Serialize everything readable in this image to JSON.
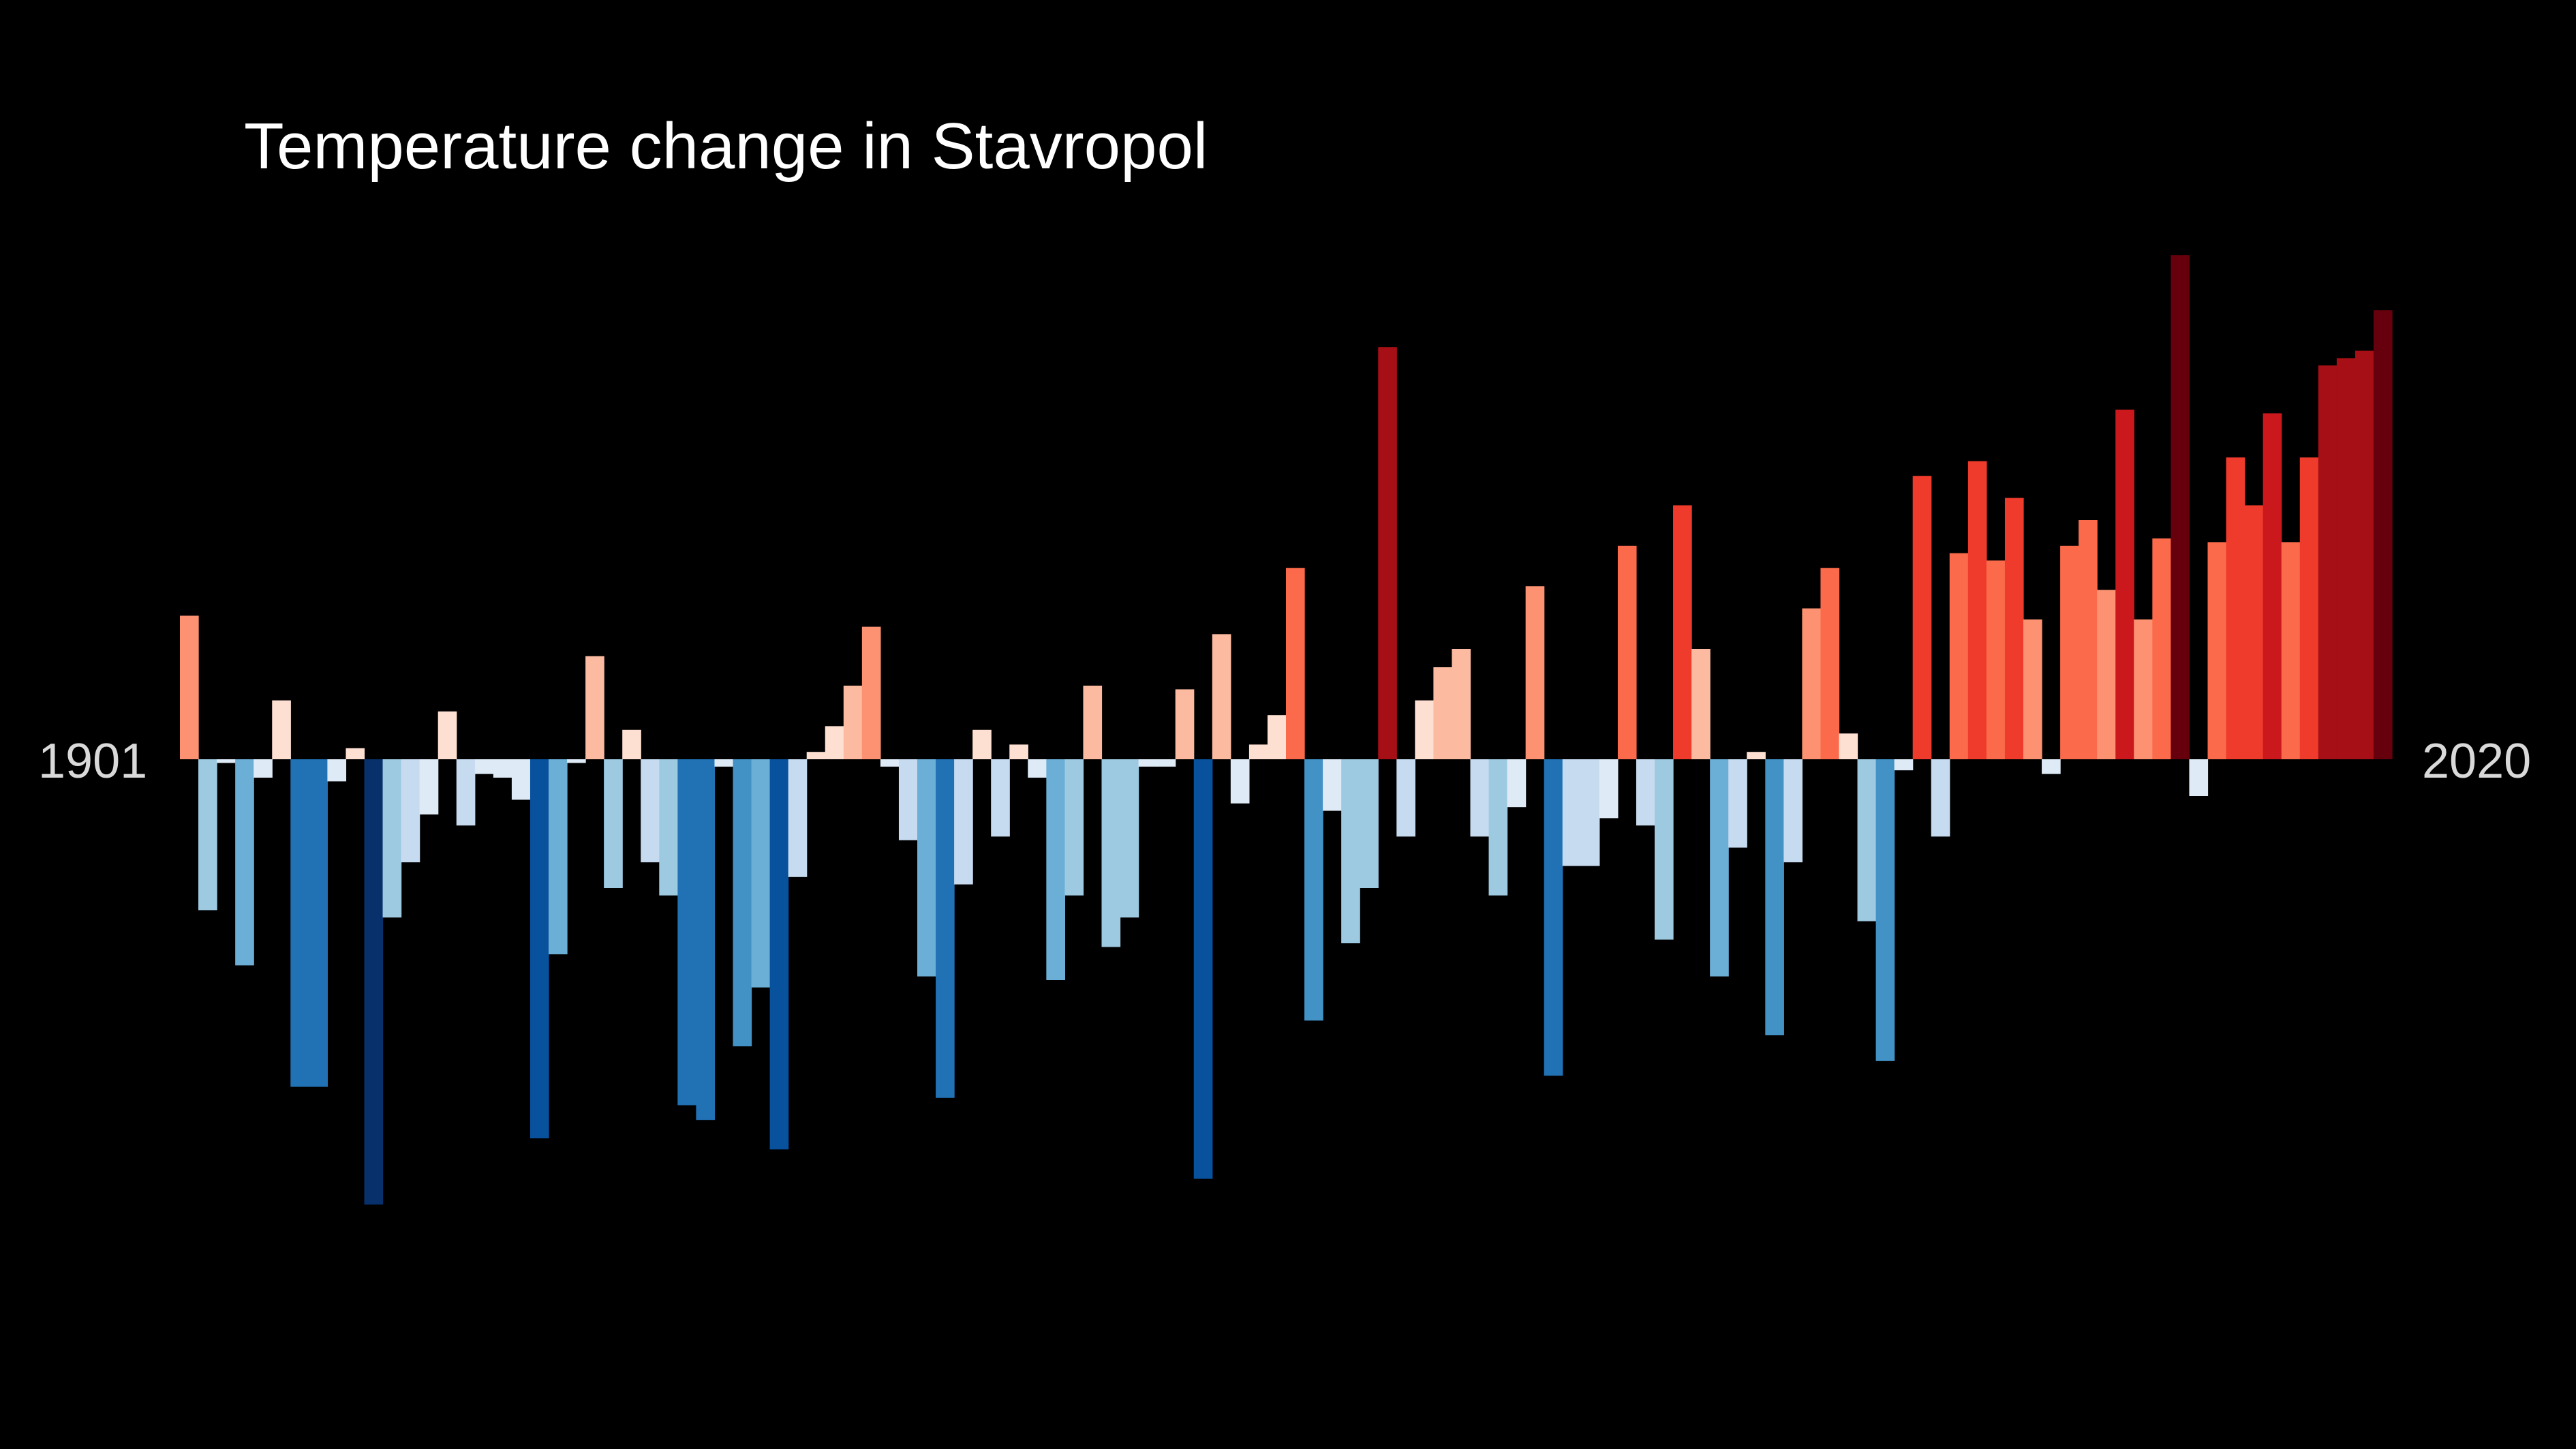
{
  "chart_data": {
    "type": "bar",
    "title": "Temperature change in Stavropol",
    "xlabel": "",
    "ylabel": "",
    "start_label": "1901",
    "end_label": "2020",
    "categories": [
      1901,
      1902,
      1903,
      1904,
      1905,
      1906,
      1907,
      1908,
      1909,
      1910,
      1911,
      1912,
      1913,
      1914,
      1915,
      1916,
      1917,
      1918,
      1919,
      1920,
      1921,
      1922,
      1923,
      1924,
      1925,
      1926,
      1927,
      1928,
      1929,
      1930,
      1931,
      1932,
      1933,
      1934,
      1935,
      1936,
      1937,
      1938,
      1939,
      1940,
      1941,
      1942,
      1943,
      1944,
      1945,
      1946,
      1947,
      1948,
      1949,
      1950,
      1951,
      1952,
      1953,
      1954,
      1955,
      1956,
      1957,
      1958,
      1959,
      1960,
      1961,
      1962,
      1963,
      1964,
      1965,
      1966,
      1967,
      1968,
      1969,
      1970,
      1971,
      1972,
      1973,
      1974,
      1975,
      1976,
      1977,
      1978,
      1979,
      1980,
      1981,
      1982,
      1983,
      1984,
      1985,
      1986,
      1987,
      1988,
      1989,
      1990,
      1991,
      1992,
      1993,
      1994,
      1995,
      1996,
      1997,
      1998,
      1999,
      2000,
      2001,
      2002,
      2003,
      2004,
      2005,
      2006,
      2007,
      2008,
      2009,
      2010,
      2011,
      2012,
      2013,
      2014,
      2015,
      2016,
      2017,
      2018,
      2019,
      2020
    ],
    "values": [
      0.39,
      -0.41,
      -0.01,
      -0.56,
      -0.05,
      0.16,
      -0.89,
      -0.89,
      -0.06,
      0.03,
      -1.21,
      -0.43,
      -0.28,
      -0.15,
      0.13,
      -0.18,
      -0.04,
      -0.05,
      -0.11,
      -1.03,
      -0.53,
      -0.01,
      0.28,
      -0.35,
      0.08,
      -0.28,
      -0.37,
      -0.94,
      -0.98,
      -0.02,
      -0.78,
      -0.62,
      -1.06,
      -0.32,
      0.02,
      0.09,
      0.2,
      0.36,
      -0.02,
      -0.22,
      -0.59,
      -0.92,
      -0.34,
      0.08,
      -0.21,
      0.04,
      -0.05,
      -0.6,
      -0.37,
      0.2,
      -0.51,
      -0.43,
      -0.02,
      -0.02,
      0.19,
      -1.14,
      0.34,
      -0.12,
      0.04,
      0.12,
      0.52,
      -0.71,
      -0.14,
      -0.5,
      -0.35,
      1.12,
      -0.21,
      0.16,
      0.25,
      0.3,
      -0.21,
      -0.37,
      -0.13,
      0.47,
      -0.86,
      -0.29,
      -0.29,
      -0.16,
      0.58,
      -0.18,
      -0.49,
      0.69,
      0.3,
      -0.59,
      -0.24,
      0.02,
      -0.75,
      -0.28,
      0.41,
      0.52,
      0.07,
      -0.44,
      -0.82,
      -0.03,
      0.77,
      -0.21,
      0.56,
      0.81,
      0.54,
      0.71,
      0.38,
      -0.04,
      0.58,
      0.65,
      0.46,
      0.95,
      0.38,
      0.6,
      1.37,
      -0.1,
      0.59,
      0.82,
      0.69,
      0.94,
      0.59,
      0.82,
      1.07,
      1.09,
      1.11,
      1.22
    ],
    "ylim": [
      -1.37,
      1.37
    ],
    "grid": false,
    "legend": "none",
    "colors": {
      "background": "#000000",
      "title": "#ffffff",
      "year_labels": "#d9d9d9"
    },
    "colormap": [
      "#08306b",
      "#08519c",
      "#2171b5",
      "#4292c6",
      "#6baed6",
      "#9ecae1",
      "#c6dbef",
      "#deebf7",
      "#fee0d2",
      "#fcbba1",
      "#fc9272",
      "#fb6a4a",
      "#ef3b2c",
      "#cb181d",
      "#a50f15",
      "#67000d"
    ]
  }
}
